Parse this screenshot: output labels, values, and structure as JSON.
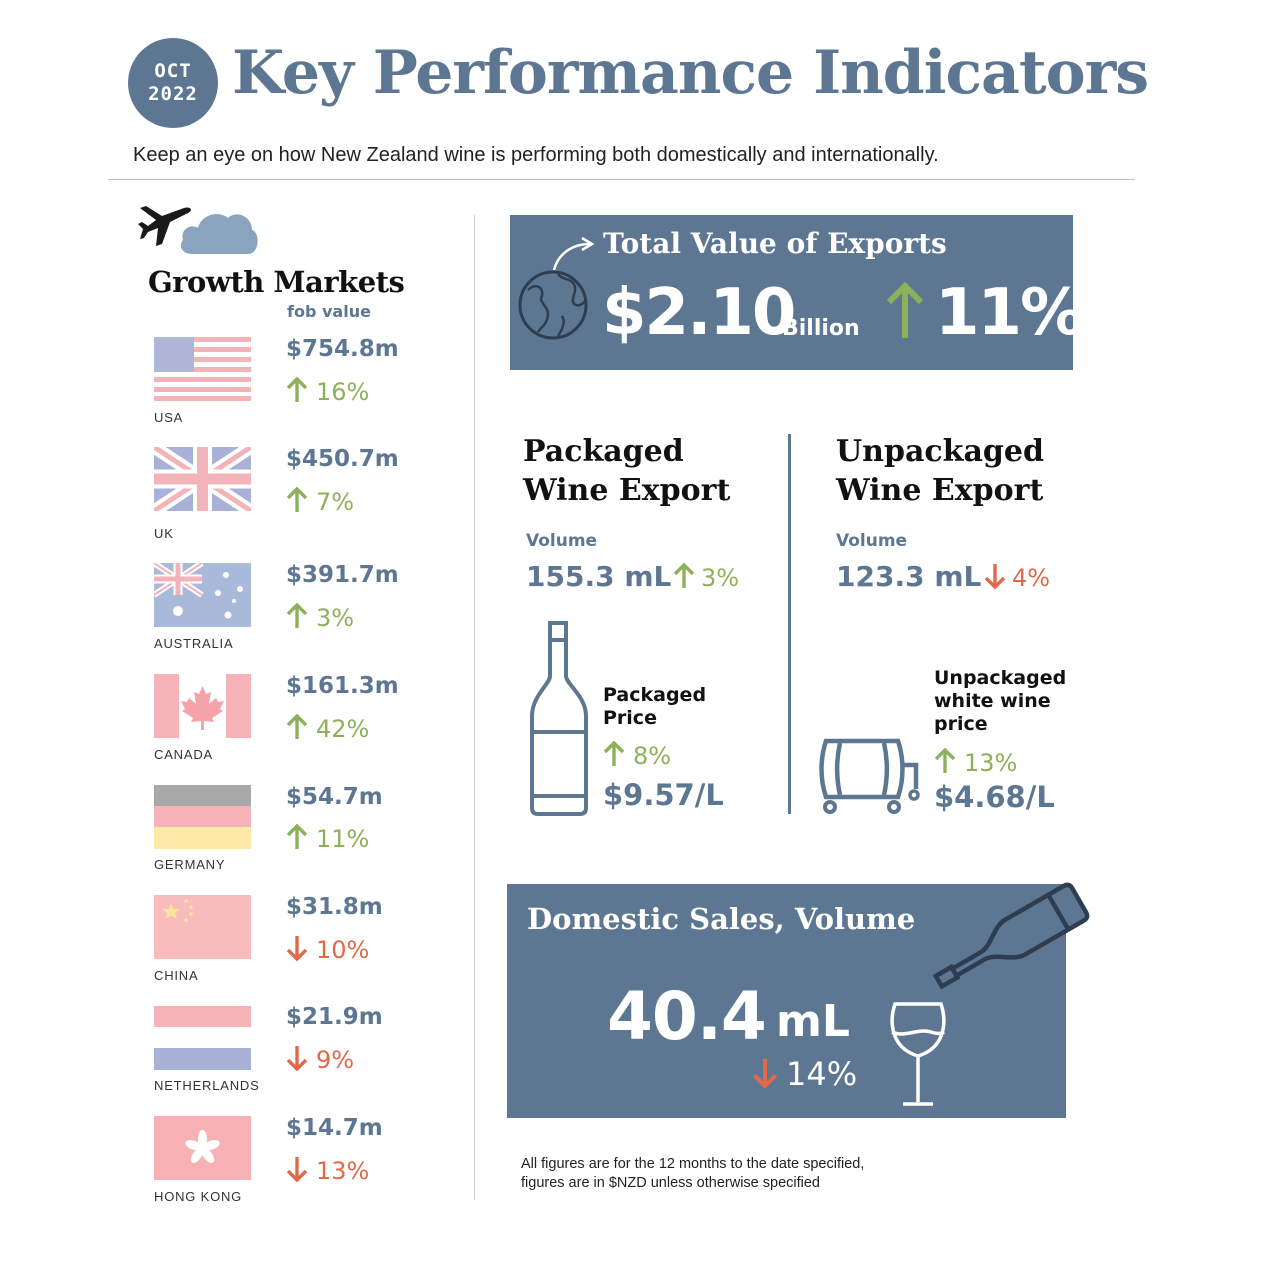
{
  "header": {
    "date_month": "OCT",
    "date_year": "2022",
    "title": "Key Performance Indicators",
    "subtitle": "Keep an eye on how New Zealand wine is performing both domestically and internationally."
  },
  "growth_markets": {
    "title": "Growth Markets",
    "subtitle": "fob value",
    "markets": [
      {
        "country": "USA",
        "value": "$754.8m",
        "change": "16%",
        "direction": "up"
      },
      {
        "country": "UK",
        "value": "$450.7m",
        "change": "7%",
        "direction": "up"
      },
      {
        "country": "AUSTRALIA",
        "value": "$391.7m",
        "change": "3%",
        "direction": "up"
      },
      {
        "country": "CANADA",
        "value": "$161.3m",
        "change": "42%",
        "direction": "up"
      },
      {
        "country": "GERMANY",
        "value": "$54.7m",
        "change": "11%",
        "direction": "up"
      },
      {
        "country": "CHINA",
        "value": "$31.8m",
        "change": "10%",
        "direction": "down"
      },
      {
        "country": "NETHERLANDS",
        "value": "$21.9m",
        "change": "9%",
        "direction": "down"
      },
      {
        "country": "HONG KONG",
        "value": "$14.7m",
        "change": "13%",
        "direction": "down"
      }
    ]
  },
  "total_exports": {
    "title": "Total Value of Exports",
    "value": "$2.10",
    "unit": "Billion",
    "change": "11%",
    "direction": "up"
  },
  "packaged": {
    "title_line1": "Packaged",
    "title_line2": "Wine Export",
    "volume_label": "Volume",
    "volume_value": "155.3 mL",
    "volume_change": "3%",
    "price_label_line1": "Packaged",
    "price_label_line2": "Price",
    "price_change": "8%",
    "price_value": "$9.57/L"
  },
  "unpackaged": {
    "title_line1": "Unpackaged",
    "title_line2": "Wine Export",
    "volume_label": "Volume",
    "volume_value": "123.3 mL",
    "volume_change": "4%",
    "price_label_line1": "Unpackaged",
    "price_label_line2": "white wine",
    "price_label_line3": "price",
    "price_change": "13%",
    "price_value": "$4.68/L"
  },
  "domestic": {
    "title": "Domestic Sales, Volume",
    "value": "40.4",
    "unit": "mL",
    "change": "14%",
    "direction": "down"
  },
  "footnote": {
    "line1": "All figures are for the 12 months to the date specified,",
    "line2": "figures are in $NZD unless otherwise specified"
  },
  "colors": {
    "brand_blue": "#5d7793",
    "up_green": "#8db05a",
    "down_red": "#e0694a"
  }
}
